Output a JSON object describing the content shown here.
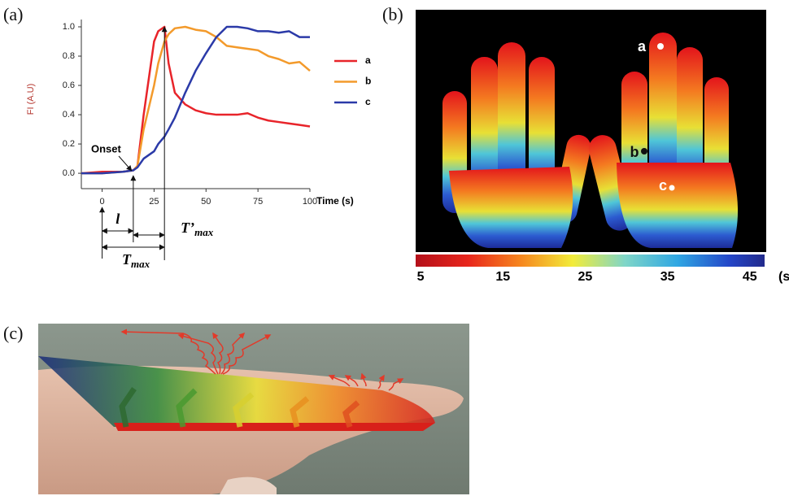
{
  "panel_labels": [
    "(a)",
    "(b)",
    "(c)"
  ],
  "chart_data": {
    "type": "line",
    "y_label": "FI (A.U)",
    "x_label": "Time (s)",
    "x": [
      -10,
      0,
      10,
      15,
      17,
      20,
      25,
      27,
      30,
      32,
      35,
      40,
      45,
      50,
      55,
      60,
      65,
      70,
      75,
      80,
      85,
      90,
      95,
      100
    ],
    "series": [
      {
        "name": "a",
        "color": "#e8242a",
        "values": [
          0,
          0.01,
          0.01,
          0.02,
          0.05,
          0.4,
          0.9,
          0.97,
          1.0,
          0.75,
          0.55,
          0.47,
          0.43,
          0.41,
          0.4,
          0.4,
          0.4,
          0.41,
          0.38,
          0.36,
          0.35,
          0.34,
          0.33,
          0.32
        ]
      },
      {
        "name": "b",
        "color": "#f39a2b",
        "values": [
          0,
          0,
          0.01,
          0.02,
          0.05,
          0.3,
          0.6,
          0.75,
          0.9,
          0.95,
          0.99,
          1.0,
          0.98,
          0.97,
          0.93,
          0.87,
          0.86,
          0.85,
          0.84,
          0.8,
          0.78,
          0.75,
          0.76,
          0.7
        ]
      },
      {
        "name": "c",
        "color": "#2b3aa8",
        "values": [
          0,
          0,
          0.01,
          0.02,
          0.04,
          0.1,
          0.15,
          0.2,
          0.25,
          0.3,
          0.38,
          0.55,
          0.7,
          0.82,
          0.93,
          1.0,
          1.0,
          0.99,
          0.97,
          0.97,
          0.96,
          0.97,
          0.93,
          0.93
        ]
      }
    ],
    "xlim": [
      -10,
      100
    ],
    "xticks": [
      0,
      25,
      50,
      75,
      100
    ],
    "ylim": [
      -0.105,
      1.05
    ],
    "yticks": [
      {
        "value": 0,
        "label": "0.0"
      },
      {
        "value": 0.2,
        "label": "0.2"
      },
      {
        "value": 0.4,
        "label": "0.4"
      },
      {
        "value": 0.6,
        "label": "0.6"
      },
      {
        "value": 0.8,
        "label": "0.8"
      },
      {
        "value": 1,
        "label": "1.0"
      }
    ],
    "legend": "right",
    "annotations": {
      "onset": "Onset",
      "l": "l",
      "t_max": {
        "base": "T",
        "sub": "max"
      },
      "t_prime_max": {
        "base": "T’",
        "sub": "max"
      }
    }
  },
  "thermal_image": {
    "point_labels": [
      "a",
      "b",
      "c"
    ],
    "colorbar": {
      "lim": [
        4.4,
        46.8
      ],
      "ticks": [
        5,
        15,
        25,
        35,
        45
      ],
      "unit": "(s)"
    }
  }
}
